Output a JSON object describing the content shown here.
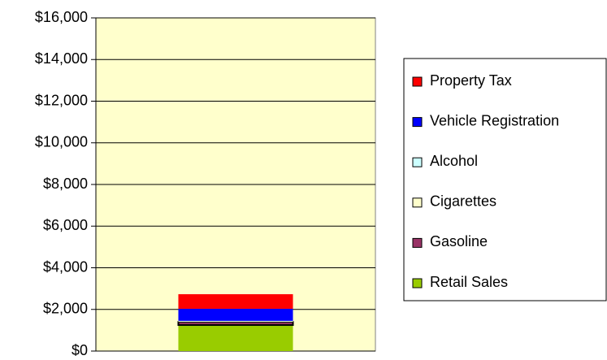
{
  "chart_data": {
    "type": "stacked_bar",
    "categories": [
      null
    ],
    "series": [
      {
        "name": "Retail Sales",
        "color": "#99cc00",
        "values": [
          1250
        ]
      },
      {
        "name": "Gasoline",
        "color": "#993366",
        "values": [
          150
        ]
      },
      {
        "name": "Cigarettes",
        "color": "#ffffcc",
        "values": [
          30
        ]
      },
      {
        "name": "Alcohol",
        "color": "#ccffff",
        "values": [
          20
        ]
      },
      {
        "name": "Vehicle Registration",
        "color": "#0000ff",
        "values": [
          580
        ]
      },
      {
        "name": "Property Tax",
        "color": "#ff0000",
        "values": [
          700
        ]
      }
    ],
    "ylim": [
      0,
      16000
    ],
    "yticks": [
      {
        "value": 0,
        "label": "$0"
      },
      {
        "value": 2000,
        "label": "$2,000"
      },
      {
        "value": 4000,
        "label": "$4,000"
      },
      {
        "value": 6000,
        "label": "$6,000"
      },
      {
        "value": 8000,
        "label": "$8,000"
      },
      {
        "value": 10000,
        "label": "$10,000"
      },
      {
        "value": 12000,
        "label": "$12,000"
      },
      {
        "value": 14000,
        "label": "$14,000"
      },
      {
        "value": 16000,
        "label": "$16,000"
      }
    ],
    "grid": true,
    "legend": "right"
  }
}
